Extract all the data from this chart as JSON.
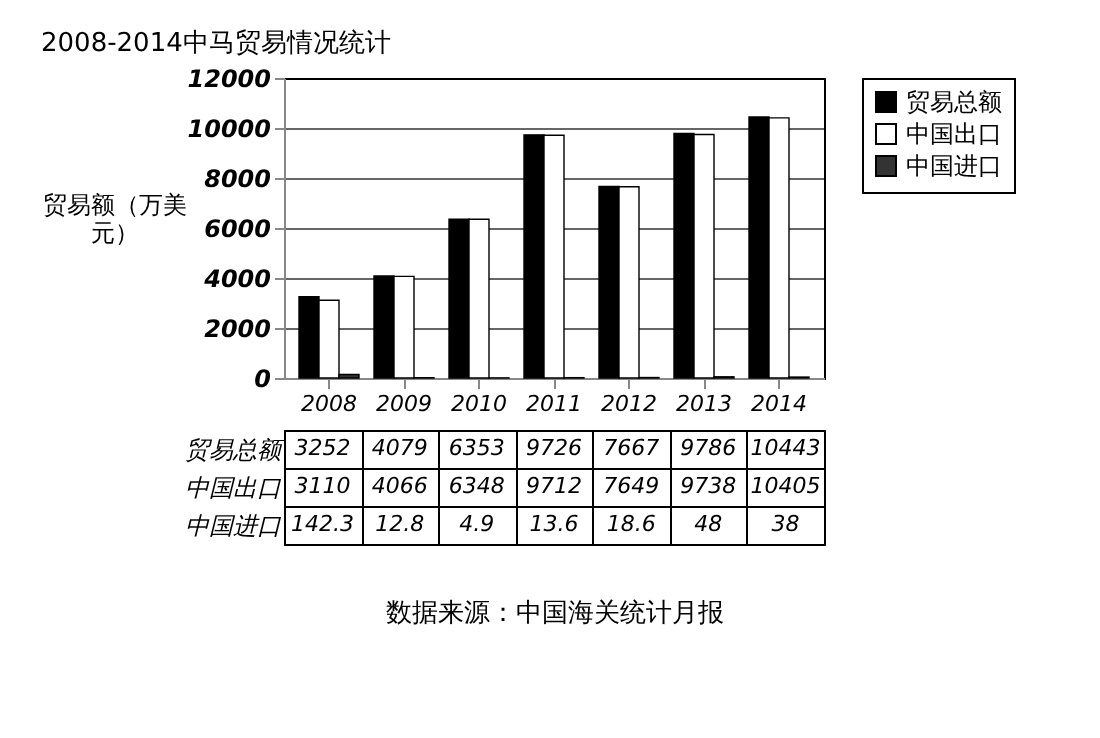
{
  "chart_data": {
    "type": "bar",
    "title": "2008-2014中马贸易情况统计",
    "ylabel": "贸易额（万美元）",
    "categories": [
      "2008",
      "2009",
      "2010",
      "2011",
      "2012",
      "2013",
      "2014"
    ],
    "series": [
      {
        "name": "贸易总额",
        "color": "#000000",
        "values": [
          3252,
          4079,
          6353,
          9726,
          7667,
          9786,
          10443
        ]
      },
      {
        "name": "中国出口",
        "color": "#ffffff",
        "values": [
          3110,
          4066,
          6348,
          9712,
          7649,
          9738,
          10405
        ]
      },
      {
        "name": "中国进口",
        "color": "#333333",
        "values": [
          142.3,
          12.8,
          4.9,
          13.6,
          18.6,
          48,
          38
        ]
      }
    ],
    "ylim": [
      0,
      12000
    ],
    "yticks": [
      0,
      2000,
      4000,
      6000,
      8000,
      10000,
      12000
    ],
    "grid": "y",
    "legend": "right",
    "data_labels": true,
    "annotations": [
      "数据来源：中国海关统计月报"
    ]
  }
}
